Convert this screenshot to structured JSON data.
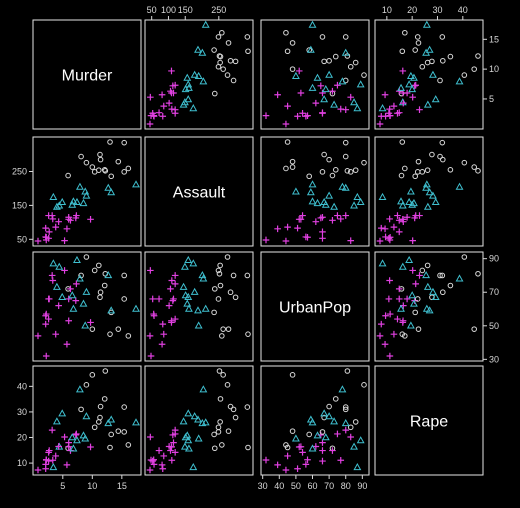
{
  "chart_data": {
    "type": "scatter",
    "subtype": "scatterplot-matrix",
    "title": "",
    "variables": [
      "Murder",
      "Assault",
      "UrbanPop",
      "Rape"
    ],
    "ranges": {
      "Murder": [
        0.8,
        17.4
      ],
      "Assault": [
        45,
        337
      ],
      "UrbanPop": [
        32,
        91
      ],
      "Rape": [
        7.3,
        46
      ]
    },
    "ticks": {
      "Murder": [
        5,
        10,
        15
      ],
      "Assault": [
        50,
        150,
        250
      ],
      "Assault_top": [
        50,
        100,
        150,
        250
      ],
      "UrbanPop": [
        30,
        50,
        70,
        90
      ],
      "UrbanPop_bottom": [
        30,
        40,
        50,
        60,
        70,
        80,
        90
      ],
      "Rape": [
        10,
        20,
        30,
        40
      ]
    },
    "groups": [
      {
        "id": "magenta-plus",
        "symbol": "plus",
        "color": "#e040e0"
      },
      {
        "id": "cyan-triangle",
        "symbol": "triangle",
        "color": "#3fbfcf"
      },
      {
        "id": "white-circle",
        "symbol": "circle",
        "color": "#d8d8d8"
      }
    ],
    "points": [
      [
        13.2,
        236,
        58,
        21.2,
        2
      ],
      [
        10.0,
        263,
        48,
        44.5,
        2
      ],
      [
        8.1,
        294,
        80,
        31.0,
        2
      ],
      [
        8.8,
        190,
        50,
        19.5,
        1
      ],
      [
        9.0,
        276,
        91,
        40.6,
        2
      ],
      [
        7.9,
        204,
        78,
        38.7,
        1
      ],
      [
        3.3,
        110,
        77,
        11.1,
        0
      ],
      [
        5.9,
        238,
        72,
        15.8,
        2
      ],
      [
        15.4,
        335,
        80,
        31.9,
        2
      ],
      [
        17.4,
        211,
        60,
        25.8,
        1
      ],
      [
        5.3,
        46,
        83,
        20.2,
        0
      ],
      [
        2.6,
        120,
        54,
        14.2,
        0
      ],
      [
        10.4,
        249,
        83,
        24.0,
        2
      ],
      [
        7.2,
        113,
        65,
        21.0,
        0
      ],
      [
        2.2,
        56,
        57,
        11.3,
        0
      ],
      [
        6.0,
        115,
        66,
        18.0,
        0
      ],
      [
        9.7,
        109,
        52,
        16.3,
        0
      ],
      [
        15.4,
        249,
        66,
        22.2,
        2
      ],
      [
        2.1,
        83,
        51,
        7.8,
        0
      ],
      [
        11.3,
        300,
        67,
        27.8,
        2
      ],
      [
        4.4,
        149,
        85,
        16.3,
        1
      ],
      [
        12.1,
        255,
        74,
        35.1,
        2
      ],
      [
        2.7,
        72,
        66,
        14.9,
        0
      ],
      [
        16.1,
        259,
        44,
        17.1,
        2
      ],
      [
        9.0,
        178,
        70,
        28.2,
        1
      ],
      [
        6.0,
        109,
        53,
        16.4,
        0
      ],
      [
        4.3,
        102,
        62,
        16.5,
        0
      ],
      [
        12.2,
        252,
        81,
        46.0,
        2
      ],
      [
        2.1,
        57,
        56,
        9.5,
        0
      ],
      [
        7.4,
        159,
        89,
        18.8,
        1
      ],
      [
        11.4,
        285,
        70,
        32.1,
        2
      ],
      [
        11.1,
        254,
        86,
        26.1,
        2
      ],
      [
        13.0,
        337,
        45,
        16.1,
        2
      ],
      [
        0.8,
        45,
        44,
        7.3,
        0
      ],
      [
        7.3,
        120,
        75,
        21.4,
        0
      ],
      [
        6.6,
        151,
        68,
        20.0,
        1
      ],
      [
        4.9,
        159,
        67,
        29.3,
        1
      ],
      [
        6.3,
        106,
        72,
        14.9,
        0
      ],
      [
        3.4,
        174,
        87,
        8.3,
        1
      ],
      [
        14.4,
        279,
        48,
        22.5,
        2
      ],
      [
        3.8,
        86,
        45,
        12.8,
        0
      ],
      [
        13.2,
        188,
        59,
        26.9,
        1
      ],
      [
        12.7,
        201,
        80,
        25.5,
        1
      ],
      [
        3.2,
        120,
        80,
        22.9,
        0
      ],
      [
        2.2,
        48,
        32,
        11.2,
        0
      ],
      [
        8.5,
        156,
        63,
        20.7,
        1
      ],
      [
        4.0,
        145,
        73,
        26.2,
        1
      ],
      [
        5.7,
        81,
        39,
        9.3,
        0
      ],
      [
        2.6,
        53,
        66,
        10.8,
        0
      ],
      [
        6.8,
        161,
        60,
        15.6,
        1
      ]
    ]
  }
}
